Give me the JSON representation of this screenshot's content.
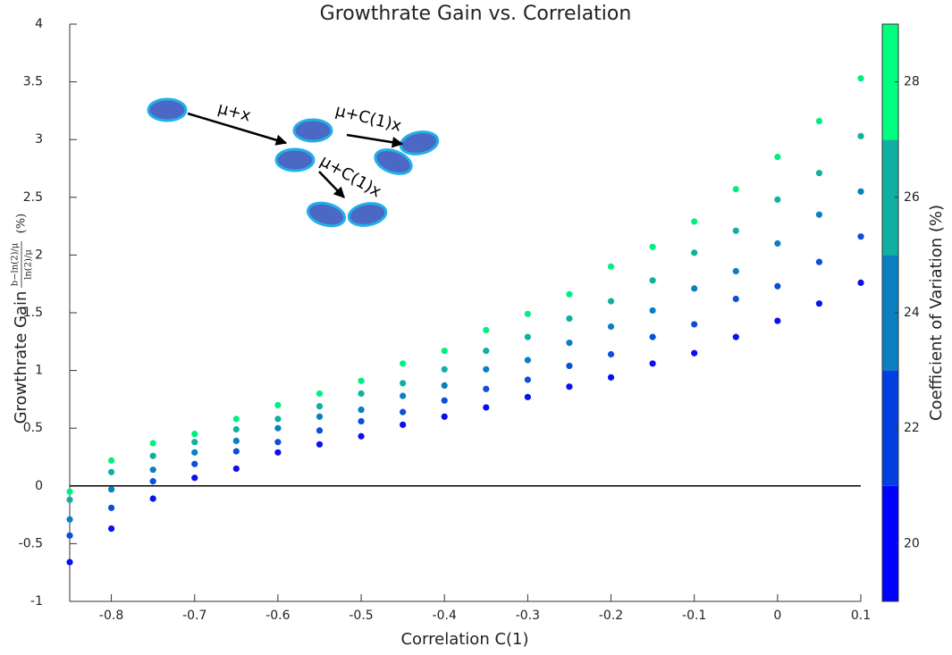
{
  "chart_data": {
    "type": "scatter",
    "title": "Growthrate Gain vs. Correlation",
    "x_label": "Correlation C(1)",
    "y_label": "Growthrate Gain",
    "y_label_numerator": "b−ln(2)/μ",
    "y_label_denominator": "ln(2)/μ",
    "y_label_unit": "(%)",
    "x": [
      -0.85,
      -0.8,
      -0.75,
      -0.7,
      -0.65,
      -0.6,
      -0.55,
      -0.5,
      -0.45,
      -0.4,
      -0.35,
      -0.3,
      -0.25,
      -0.2,
      -0.15,
      -0.1,
      -0.05,
      0,
      0.05,
      0.1
    ],
    "series": [
      {
        "color": "#0a10ee",
        "values": [
          -0.66,
          -0.37,
          -0.11,
          0.07,
          0.15,
          0.29,
          0.36,
          0.43,
          0.53,
          0.6,
          0.68,
          0.77,
          0.86,
          0.94,
          1.06,
          1.15,
          1.29,
          1.43,
          1.58,
          1.76
        ]
      },
      {
        "color": "#0a50d8",
        "values": [
          -0.43,
          -0.19,
          0.04,
          0.19,
          0.3,
          0.38,
          0.48,
          0.56,
          0.64,
          0.74,
          0.84,
          0.92,
          1.04,
          1.14,
          1.29,
          1.4,
          1.62,
          1.73,
          1.94,
          2.16
        ]
      },
      {
        "color": "#0a80c0",
        "values": [
          -0.29,
          -0.03,
          0.14,
          0.29,
          0.39,
          0.5,
          0.6,
          0.66,
          0.78,
          0.87,
          1.01,
          1.09,
          1.24,
          1.38,
          1.52,
          1.71,
          1.86,
          2.1,
          2.35,
          2.55
        ]
      },
      {
        "color": "#10b0a0",
        "values": [
          -0.12,
          0.12,
          0.26,
          0.38,
          0.49,
          0.58,
          0.69,
          0.8,
          0.89,
          1.01,
          1.17,
          1.29,
          1.45,
          1.6,
          1.78,
          2.02,
          2.21,
          2.48,
          2.71,
          3.03
        ]
      },
      {
        "color": "#00f080",
        "values": [
          -0.05,
          0.22,
          0.37,
          0.45,
          0.58,
          0.7,
          0.8,
          0.91,
          1.06,
          1.17,
          1.35,
          1.49,
          1.66,
          1.9,
          2.07,
          2.29,
          2.57,
          2.85,
          3.16,
          3.53
        ]
      }
    ],
    "xlim": [
      -0.85,
      0.1
    ],
    "ylim": [
      -1,
      4
    ],
    "xticks": [
      -0.8,
      -0.7,
      -0.6,
      -0.5,
      -0.4,
      -0.3,
      -0.2,
      -0.1,
      0,
      0.1
    ],
    "yticks": [
      -1,
      -0.5,
      0,
      0.5,
      1,
      1.5,
      2,
      2.5,
      3,
      3.5,
      4
    ],
    "hline": 0,
    "colorbar": {
      "label": "Coefficient of Variation (%)",
      "clim": [
        19,
        29
      ],
      "ticks": [
        20,
        22,
        24,
        26,
        28
      ],
      "colors": [
        "#0000ff",
        "#0040e0",
        "#0a80c0",
        "#10b0a0",
        "#00ff80"
      ]
    },
    "annotations": [
      "μ+x",
      "μ+C(1)x",
      "μ+C(1)x"
    ]
  }
}
